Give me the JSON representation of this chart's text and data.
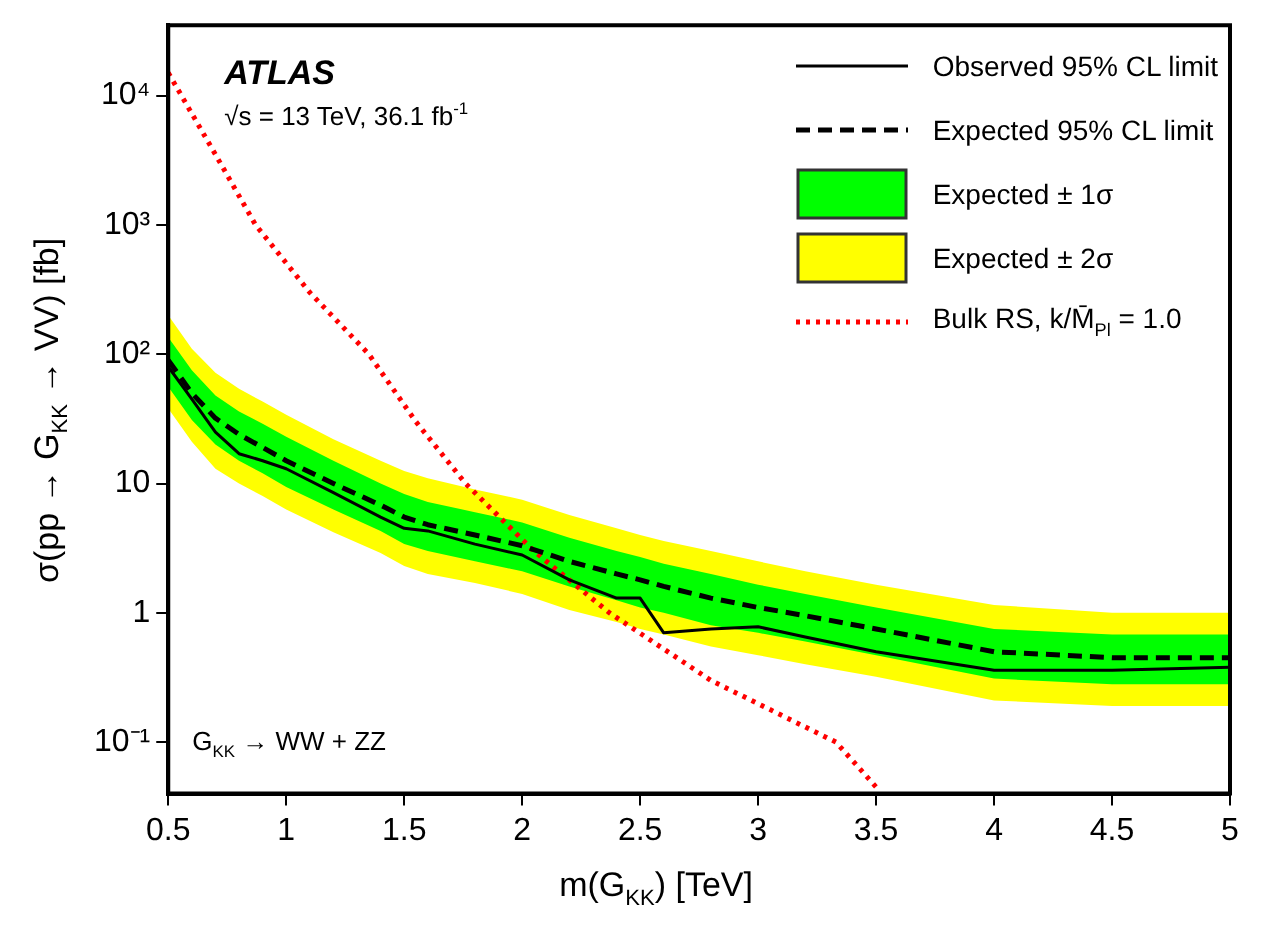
{
  "chart_data": {
    "type": "line",
    "xlabel": "m(G$_{KK}$)  [TeV]",
    "ylabel": "σ(pp → G$_{KK}$ → VV)  [fb]",
    "annotations": [
      "ATLAS",
      "√s = 13 TeV, 36.1 fb$^{-1}$",
      "G$_{KK}$ → WW + ZZ"
    ],
    "x": [
      0.5,
      0.6,
      0.7,
      0.8,
      0.9,
      1.0,
      1.2,
      1.4,
      1.5,
      1.6,
      1.8,
      2.0,
      2.2,
      2.4,
      2.5,
      2.6,
      2.8,
      3.0,
      3.2,
      3.5,
      4.0,
      4.5,
      5.0
    ],
    "series": [
      {
        "name": "Observed 95% CL limit",
        "type": "line",
        "color": "#000000",
        "line_style": "solid",
        "values": [
          80,
          45,
          25,
          17,
          15,
          13,
          8.5,
          5.5,
          4.5,
          4.3,
          3.4,
          2.8,
          1.8,
          1.3,
          1.3,
          0.7,
          0.75,
          0.78,
          0.65,
          0.5,
          0.36,
          0.36,
          0.38
        ]
      },
      {
        "name": "Expected 95% CL limit",
        "type": "line",
        "color": "#000000",
        "line_style": "dashed",
        "values": [
          90,
          50,
          32,
          24,
          19,
          15,
          10,
          6.8,
          5.5,
          4.8,
          4,
          3.3,
          2.5,
          2,
          1.8,
          1.6,
          1.3,
          1.1,
          0.95,
          0.75,
          0.5,
          0.45,
          0.45
        ]
      },
      {
        "name": "Expected ± 1σ",
        "type": "line",
        "color": "#00ff00",
        "values": [
          null,
          null,
          null,
          null,
          null,
          null,
          null,
          null,
          null,
          null,
          null,
          null,
          null,
          null,
          null,
          null,
          null,
          null,
          null,
          null,
          null,
          null,
          null
        ],
        "lower": [
          56,
          31,
          20,
          15,
          12,
          9.4,
          6.3,
          4.3,
          3.4,
          3.0,
          2.5,
          2.1,
          1.6,
          1.25,
          1.1,
          1.0,
          0.8,
          0.7,
          0.6,
          0.47,
          0.31,
          0.28,
          0.28
        ],
        "upper": [
          135,
          75,
          48,
          36,
          29,
          23,
          15,
          10,
          8.3,
          7.2,
          6,
          5,
          3.8,
          3,
          2.7,
          2.4,
          2,
          1.65,
          1.4,
          1.1,
          0.75,
          0.68,
          0.68
        ]
      },
      {
        "name": "Expected ± 2σ",
        "type": "line",
        "color": "#ffff00",
        "values": [
          null,
          null,
          null,
          null,
          null,
          null,
          null,
          null,
          null,
          null,
          null,
          null,
          null,
          null,
          null,
          null,
          null,
          null,
          null,
          null,
          null,
          null,
          null
        ],
        "lower": [
          38,
          21,
          13,
          10,
          8,
          6.3,
          4.2,
          2.9,
          2.3,
          2,
          1.7,
          1.4,
          1.05,
          0.85,
          0.75,
          0.68,
          0.55,
          0.47,
          0.4,
          0.32,
          0.21,
          0.19,
          0.19
        ],
        "upper": [
          200,
          110,
          72,
          54,
          43,
          34,
          22,
          15,
          12.5,
          11,
          9,
          7.5,
          5.7,
          4.5,
          4,
          3.6,
          3,
          2.5,
          2.1,
          1.65,
          1.15,
          1,
          1
        ]
      },
      {
        "name": "Bulk RS, k/M̄$_{Pl}$ = 1.0",
        "type": "line",
        "color": "#ff0000",
        "line_style": "dotted",
        "x": [
          0.5,
          0.7,
          0.87,
          1.1,
          1.35,
          1.55,
          1.76,
          2.05,
          2.37,
          2.8,
          3.33,
          3.5
        ],
        "values": [
          15000,
          3500,
          1000,
          300,
          100,
          30,
          10,
          3,
          1,
          0.3,
          0.1,
          0.045
        ]
      }
    ],
    "xlim": [
      0.5,
      5
    ],
    "xticks": [
      0.5,
      1,
      1.5,
      2,
      2.5,
      3,
      3.5,
      4,
      4.5,
      5
    ],
    "log": "y",
    "ylim": [
      0.04,
      35000
    ],
    "yticks": [
      {
        "value": 0.1,
        "label": "10⁻¹"
      },
      {
        "value": 1,
        "label": "1"
      },
      {
        "value": 10,
        "label": "10"
      },
      {
        "value": 100,
        "label": "10²"
      },
      {
        "value": 1000,
        "label": "10³"
      },
      {
        "value": 10000,
        "label": "10⁴"
      }
    ],
    "marker": "none",
    "grid": false,
    "legend": "top right"
  }
}
